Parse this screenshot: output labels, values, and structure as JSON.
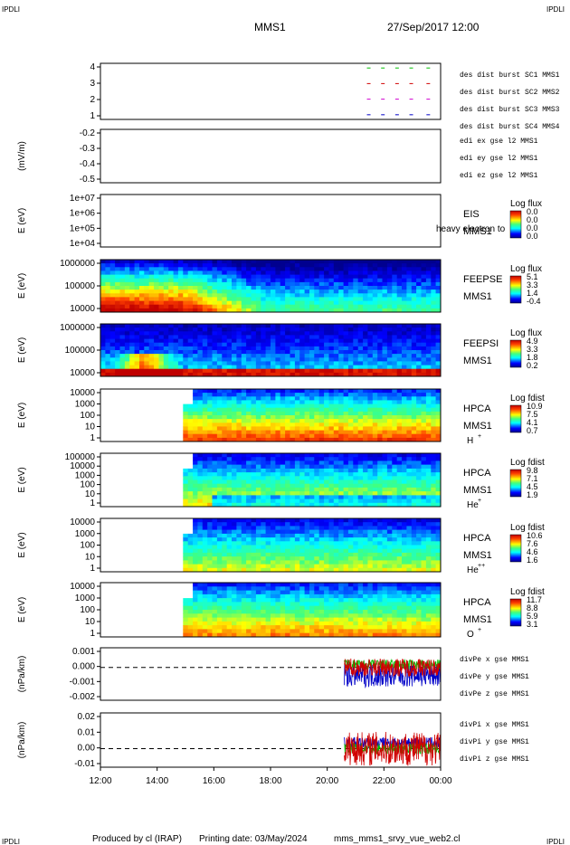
{
  "header": {
    "corner_left": "IPDLI",
    "corner_right": "IPDLI",
    "mission": "MMS1",
    "datetime": "27/Sep/2017 12:00"
  },
  "footer": {
    "produced_by": "Produced by cl (IRAP)",
    "printing_date": "Printing date: 03/May/2024",
    "product": "mms_mms1_srvy_vue_web2.cl",
    "corner_left": "IPDLI",
    "corner_right": "IPDLI"
  },
  "chart_data": {
    "type": "stacked time-series panels",
    "x_axis": {
      "range": [
        "12:00",
        "00:00"
      ],
      "tick_labels": [
        "12:00",
        "14:00",
        "16:00",
        "18:00",
        "20:00",
        "22:00",
        "00:00"
      ]
    },
    "panels": [
      {
        "id": "burst",
        "type": "scatter",
        "yticks": [
          "4",
          "3",
          "2",
          "1"
        ],
        "ylim": [
          0.7,
          4.3
        ],
        "series": [
          {
            "name": "des dist burst SC1 MMS1",
            "color": "#0000c8",
            "y": 1,
            "x_hours": [
              21.4,
              21.9,
              22.4,
              22.9,
              23.5
            ]
          },
          {
            "name": "des dist burst SC2 MMS2",
            "color": "#d000d0",
            "y": 2,
            "x_hours": [
              21.4,
              21.9,
              22.4,
              22.9,
              23.5
            ]
          },
          {
            "name": "des dist burst SC3 MMS3",
            "color": "#d00000",
            "y": 3,
            "x_hours": [
              21.4,
              21.9,
              22.4,
              22.9,
              23.5
            ]
          },
          {
            "name": "des dist burst SC4 MMS4",
            "color": "#00c000",
            "y": 4,
            "x_hours": [
              21.4,
              21.9,
              22.4,
              22.9,
              23.5
            ]
          }
        ]
      },
      {
        "id": "edi",
        "type": "line",
        "ylabel": "(mV/m)",
        "yticks": [
          "-0.2",
          "-0.3",
          "-0.4",
          "-0.5"
        ],
        "series": [
          {
            "name": "edi ex gse l2 MMS1",
            "color": "#d00000"
          },
          {
            "name": "edi ey gse l2 MMS1",
            "color": "#00c000"
          },
          {
            "name": "edi ez gse l2 MMS1",
            "color": "#0000c8"
          }
        ]
      },
      {
        "id": "eis",
        "type": "heatmap",
        "ylabel": "E (eV)",
        "yticks": [
          "1e+07",
          "1e+06",
          "1e+05",
          "1e+04"
        ],
        "instrument": [
          "EIS",
          "MMS1"
        ],
        "overlay_text": "heavy electron to",
        "colorbar": {
          "title": "Log flux",
          "ticks": [
            "0.0",
            "0.0",
            "0.0",
            "0.0"
          ]
        }
      },
      {
        "id": "feepse",
        "type": "heatmap",
        "ylabel": "E (eV)",
        "yticks": [
          "1000000",
          "100000",
          "10000"
        ],
        "instrument": [
          "FEEPSE",
          "MMS1"
        ],
        "colorbar": {
          "title": "Log flux",
          "ticks": [
            "5.1",
            "3.3",
            "1.4",
            "-0.4"
          ]
        },
        "pattern": "high flux (red) at low energy 12:00-15:30, fading to green/blue after 16:30"
      },
      {
        "id": "feepsi",
        "type": "heatmap",
        "ylabel": "E (eV)",
        "yticks": [
          "1000000",
          "100000",
          "10000"
        ],
        "instrument": [
          "FEEPSI",
          "MMS1"
        ],
        "colorbar": {
          "title": "Log flux",
          "ticks": [
            "4.9",
            "3.3",
            "1.8",
            "0.2"
          ]
        },
        "pattern": "red band at lowest energy; enhancement near 13:00-14:00"
      },
      {
        "id": "hpca_h",
        "type": "heatmap",
        "ylabel": "E (eV)",
        "yticks": [
          "10000",
          "1000",
          "100",
          "10",
          "1"
        ],
        "instrument": [
          "HPCA",
          "MMS1",
          "H",
          "+"
        ],
        "colorbar": {
          "title": "Log fdist",
          "ticks": [
            "10.9",
            "7.5",
            "4.1",
            "0.7"
          ]
        },
        "start_hour": 15.0
      },
      {
        "id": "hpca_he",
        "type": "heatmap",
        "ylabel": "E (eV)",
        "yticks": [
          "100000",
          "10000",
          "1000",
          "100",
          "10",
          "1"
        ],
        "instrument": [
          "HPCA",
          "MMS1",
          "He",
          "+"
        ],
        "colorbar": {
          "title": "Log fdist",
          "ticks": [
            "9.8",
            "7.1",
            "4.5",
            "1.9"
          ]
        },
        "start_hour": 15.0
      },
      {
        "id": "hpca_hepp",
        "type": "heatmap",
        "ylabel": "E (eV)",
        "yticks": [
          "10000",
          "1000",
          "100",
          "10",
          "1"
        ],
        "instrument": [
          "HPCA",
          "MMS1",
          "He",
          "++"
        ],
        "colorbar": {
          "title": "Log fdist",
          "ticks": [
            "10.6",
            "7.6",
            "4.6",
            "1.6"
          ]
        },
        "start_hour": 15.0
      },
      {
        "id": "hpca_o",
        "type": "heatmap",
        "ylabel": "E (eV)",
        "yticks": [
          "10000",
          "1000",
          "100",
          "10",
          "1"
        ],
        "instrument": [
          "HPCA",
          "MMS1",
          "O",
          "+"
        ],
        "colorbar": {
          "title": "Log fdist",
          "ticks": [
            "11.7",
            "8.8",
            "5.9",
            "3.1"
          ]
        },
        "start_hour": 15.0
      },
      {
        "id": "divpe",
        "type": "line",
        "ylabel": "(nPa/km)",
        "yticks": [
          "0.001",
          "0.000",
          "-0.001",
          "-0.002"
        ],
        "ylim": [
          -0.0025,
          0.0015
        ],
        "zero_line": true,
        "data_start_hour": 20.6,
        "series": [
          {
            "name": "divPe x gse MMS1",
            "color": "#d00000"
          },
          {
            "name": "divPe y gse MMS1",
            "color": "#00c000"
          },
          {
            "name": "divPe z gse MMS1",
            "color": "#0000c8"
          }
        ]
      },
      {
        "id": "divpi",
        "type": "line",
        "ylabel": "(nPa/km)",
        "yticks": [
          "0.02",
          "0.01",
          "0.00",
          "-0.01"
        ],
        "ylim": [
          -0.013,
          0.025
        ],
        "zero_line": true,
        "data_start_hour": 20.6,
        "series": [
          {
            "name": "divPi x gse MMS1",
            "color": "#d00000"
          },
          {
            "name": "divPi y gse MMS1",
            "color": "#00c000"
          },
          {
            "name": "divPi z gse MMS1",
            "color": "#0000c8"
          }
        ]
      }
    ]
  }
}
